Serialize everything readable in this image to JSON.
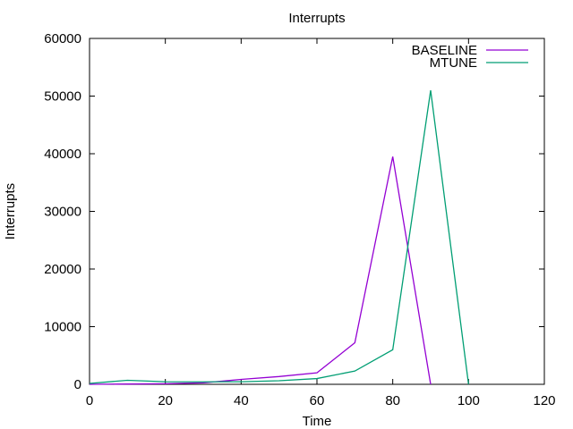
{
  "chart_data": {
    "type": "line",
    "title": "Interrupts",
    "xlabel": "Time",
    "ylabel": "Interrupts",
    "xlim": [
      0,
      120
    ],
    "ylim": [
      0,
      60000
    ],
    "xticks": [
      0,
      20,
      40,
      60,
      80,
      100,
      120
    ],
    "yticks": [
      0,
      10000,
      20000,
      30000,
      40000,
      50000,
      60000
    ],
    "grid": false,
    "legend_position": "top-right-inside",
    "axis_color": "#000000",
    "background_color": "#ffffff",
    "series": [
      {
        "name": "BASELINE",
        "color": "#9400d3",
        "x": [
          0,
          10,
          20,
          30,
          40,
          50,
          60,
          70,
          80,
          90
        ],
        "y": [
          0,
          50,
          100,
          250,
          850,
          1350,
          2000,
          7200,
          39500,
          0
        ]
      },
      {
        "name": "MTUNE",
        "color": "#009e73",
        "x": [
          0,
          10,
          20,
          30,
          40,
          50,
          60,
          70,
          80,
          90,
          100
        ],
        "y": [
          150,
          700,
          450,
          430,
          450,
          620,
          1000,
          2300,
          6000,
          51000,
          0
        ]
      }
    ]
  }
}
